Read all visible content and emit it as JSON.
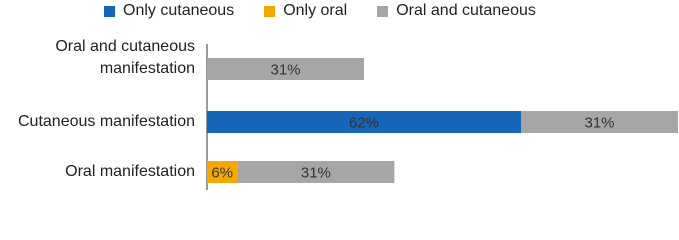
{
  "chart_data": {
    "type": "stacked-bar-horizontal",
    "categories": [
      "Oral and cutaneous manifestation",
      "Cutaneous manifestation",
      "Oral manifestation"
    ],
    "series": [
      {
        "name": "Only cutaneous",
        "color": "#1565b8",
        "values": [
          null,
          62,
          null
        ],
        "value_labels": [
          null,
          "62%",
          null
        ]
      },
      {
        "name": "Only oral",
        "color": "#f5a800",
        "values": [
          null,
          null,
          6
        ],
        "value_labels": [
          null,
          null,
          "6%"
        ]
      },
      {
        "name": "Oral and cutaneous",
        "color": "#a6a6a6",
        "values": [
          31,
          31,
          31
        ],
        "value_labels": [
          "31%",
          "31%",
          "31%"
        ]
      }
    ]
  }
}
